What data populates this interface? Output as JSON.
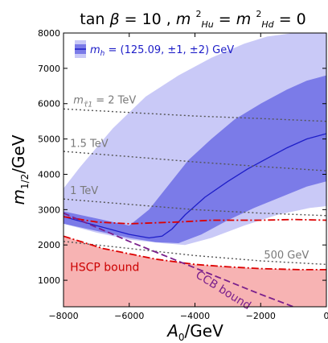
{
  "chart_data": {
    "type": "area",
    "title": "tan β = 10 , m²_Hu = m²_Hd = 0",
    "title_parts": {
      "lhs": "tan",
      "beta": "β",
      "eq_val": " = 10 ,  ",
      "m": "m",
      "hu": "Hu",
      "hd": "Hd",
      "eq": " = ",
      "m2": "m",
      "zero": " = 0",
      "sup": "2"
    },
    "xlabel": "A₀/GeV",
    "xlabel_parts": {
      "a": "A",
      "sub": "0",
      "unit": "/GeV"
    },
    "ylabel": "m₁/₂/GeV",
    "ylabel_parts": {
      "m": "m",
      "sub": "1/2",
      "unit": "/GeV"
    },
    "xlim": [
      -8000,
      0
    ],
    "ylim": [
      250,
      8000
    ],
    "xticks": [
      "−8000",
      "−6000",
      "−4000",
      "−2000",
      "0"
    ],
    "yticks": [
      "1000",
      "2000",
      "3000",
      "4000",
      "5000",
      "6000",
      "7000",
      "8000"
    ],
    "legend": {
      "placement": "top-left",
      "label": "mh = (125.09, ±1, ±2) GeV",
      "label_parts": {
        "m": "m",
        "sub": "h",
        "text": " = (125.09, ±1, ±2) GeV"
      }
    },
    "colors": {
      "band_2sigma": "#c9c9f7",
      "band_1sigma": "#7b7be8",
      "central_line": "#1e1ec8",
      "hscp_region": "#f7b3b3",
      "hscp_line": "#dd0000",
      "ccb_line": "#7a1f8c",
      "stau_contour": "#555555"
    },
    "series": [
      {
        "name": "mh central",
        "style": "solid",
        "x": [
          -8000,
          -7000,
          -6000,
          -5400,
          -5000,
          -4700,
          -4300,
          -3700,
          -3000,
          -2400,
          -1800,
          -1200,
          -600,
          0
        ],
        "y": [
          2800,
          2550,
          2300,
          2200,
          2250,
          2450,
          2850,
          3350,
          3800,
          4150,
          4450,
          4750,
          5000,
          5150
        ]
      },
      {
        "name": "m_stau1 = 2 TeV",
        "style": "dotted",
        "x": [
          -8000,
          -6000,
          -4000,
          -2000,
          0
        ],
        "y": [
          5850,
          5750,
          5650,
          5580,
          5500
        ]
      },
      {
        "name": "m_stau1 = 1.5 TeV",
        "style": "dotted",
        "x": [
          -8000,
          -6000,
          -4000,
          -2000,
          0
        ],
        "y": [
          4650,
          4500,
          4350,
          4220,
          4100
        ]
      },
      {
        "name": "m_stau1 = 1 TeV",
        "style": "dotted",
        "x": [
          -8000,
          -6000,
          -4000,
          -2000,
          0
        ],
        "y": [
          3300,
          3150,
          3000,
          2900,
          2830
        ]
      },
      {
        "name": "m_stau1 = 500 GeV",
        "style": "dotted",
        "x": [
          -8000,
          -6000,
          -4000,
          -2000,
          0
        ],
        "y": [
          2100,
          1900,
          1700,
          1550,
          1450
        ]
      },
      {
        "name": "HSCP bound",
        "style": "dash-dot",
        "x": [
          -8000,
          -6800,
          -5200,
          -4000,
          -3000,
          -2000,
          -800,
          0
        ],
        "y": [
          2250,
          1900,
          1600,
          1450,
          1380,
          1330,
          1300,
          1300
        ]
      },
      {
        "name": "upper red boundary",
        "style": "dash-dot",
        "x": [
          -8000,
          -7000,
          -6000,
          -4500,
          -3500,
          -2000,
          -1000,
          0
        ],
        "y": [
          2800,
          2650,
          2600,
          2650,
          2700,
          2700,
          2720,
          2700
        ]
      },
      {
        "name": "CCB bound",
        "style": "dashed",
        "x": [
          -8000,
          -6000,
          -4000,
          -2000,
          -1000
        ],
        "y": [
          2900,
          2100,
          1350,
          600,
          250
        ]
      }
    ],
    "bands": {
      "two_sigma_upper": {
        "x": [
          -8000,
          -7500,
          -6500,
          -5500,
          -4500,
          -3500,
          -2500,
          -1800,
          -1000,
          -400,
          0
        ],
        "y": [
          3600,
          4200,
          5300,
          6200,
          6800,
          7300,
          7700,
          7900,
          8000,
          8000,
          8000
        ]
      },
      "two_sigma_lower": {
        "x": [
          -8000,
          -7000,
          -6000,
          -5000,
          -4300,
          -3500,
          -2500,
          -1500,
          -500,
          0
        ],
        "y": [
          2600,
          2350,
          2150,
          2050,
          2000,
          2200,
          2550,
          2850,
          3050,
          3100
        ]
      },
      "one_sigma_upper": {
        "x": [
          -8000,
          -7000,
          -6000,
          -5400,
          -4800,
          -4200,
          -3500,
          -2800,
          -2000,
          -1200,
          -600,
          0
        ],
        "y": [
          2950,
          2750,
          2550,
          3000,
          3700,
          4400,
          5000,
          5550,
          6000,
          6400,
          6650,
          6800
        ]
      },
      "one_sigma_lower": {
        "x": [
          -8000,
          -7000,
          -6000,
          -5200,
          -4500,
          -3800,
          -3000,
          -2200,
          -1400,
          -600,
          0
        ],
        "y": [
          2600,
          2400,
          2200,
          2080,
          2050,
          2300,
          2700,
          3050,
          3350,
          3650,
          3800
        ]
      }
    },
    "annotations": {
      "stau_2tev": {
        "m": "m",
        "sub": "τ̃1",
        "text": "  = 2 TeV",
        "x": -7700,
        "y": 6000
      },
      "stau_15tev": {
        "text": "1.5 TeV",
        "x": -7800,
        "y": 4780
      },
      "stau_1tev": {
        "text": "1 TeV",
        "x": -7800,
        "y": 3440
      },
      "stau_500gev": {
        "text": "500 GeV",
        "x": -1900,
        "y": 1620
      },
      "hscp": {
        "text": "HSCP bound",
        "x": -7800,
        "y": 1260
      },
      "ccb": {
        "text": "CCB bound",
        "x": -4000,
        "y": 1100
      }
    }
  }
}
